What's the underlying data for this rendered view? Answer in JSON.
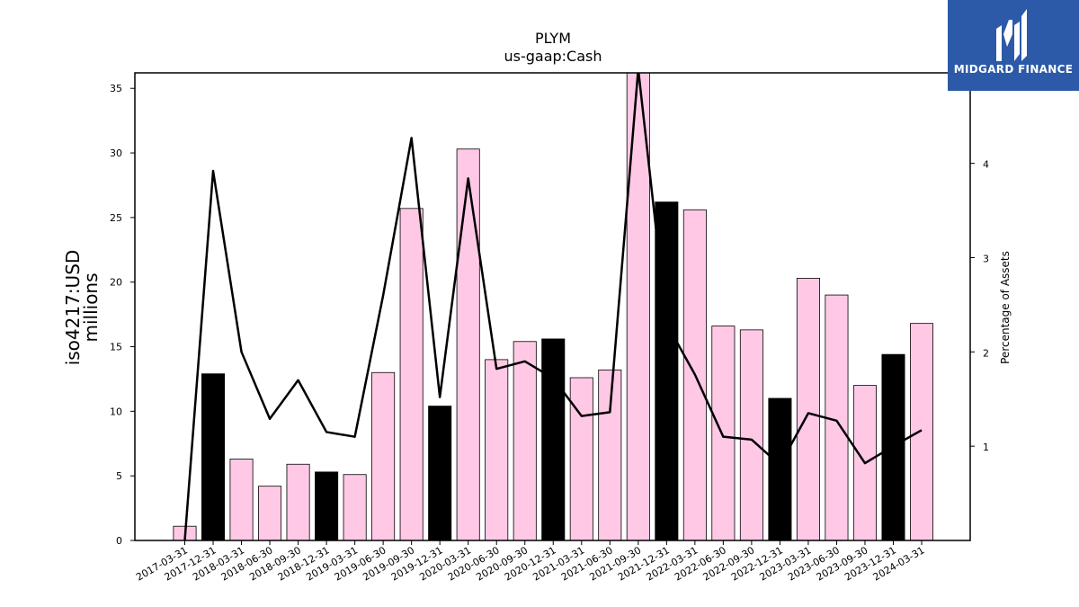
{
  "brand": {
    "name": "MIDGARD FINANCE",
    "bg_color": "#2c5aa8"
  },
  "chart_data": {
    "type": "bar",
    "title": "PLYM",
    "subtitle": "us-gaap:Cash",
    "ylabel_line1": "iso4217:USD",
    "ylabel_line2": "millions",
    "y2label": "Percentage of Assets",
    "ylim": [
      0,
      36.2
    ],
    "y2lim": [
      0,
      4.96
    ],
    "yticks": [
      0,
      5,
      10,
      15,
      20,
      25,
      30,
      35
    ],
    "y2ticks": [
      1,
      2,
      3,
      4
    ],
    "categories": [
      "2017-03-31",
      "2017-12-31",
      "2018-03-31",
      "2018-06-30",
      "2018-09-30",
      "2018-12-31",
      "2019-03-31",
      "2019-06-30",
      "2019-09-30",
      "2019-12-31",
      "2020-03-31",
      "2020-06-30",
      "2020-09-30",
      "2020-12-31",
      "2021-03-31",
      "2021-06-30",
      "2021-09-30",
      "2021-12-31",
      "2022-03-31",
      "2022-06-30",
      "2022-09-30",
      "2022-12-31",
      "2023-03-31",
      "2023-06-30",
      "2023-09-30",
      "2023-12-31",
      "2024-03-31"
    ],
    "values": [
      1.1,
      12.9,
      6.3,
      4.2,
      5.9,
      5.3,
      5.1,
      13.0,
      25.7,
      10.4,
      30.3,
      14.0,
      15.4,
      15.6,
      12.6,
      13.2,
      36.2,
      26.2,
      25.6,
      16.6,
      16.3,
      11.0,
      20.3,
      19.0,
      12.0,
      14.4,
      16.8
    ],
    "bar_highlight": [
      false,
      true,
      false,
      false,
      false,
      true,
      false,
      false,
      false,
      true,
      false,
      false,
      false,
      true,
      false,
      false,
      false,
      true,
      false,
      false,
      false,
      true,
      false,
      false,
      false,
      true,
      false
    ],
    "bar_color": "#ffc9e6",
    "highlight_color": "#000000",
    "series": [
      {
        "axis": "right",
        "type": "line",
        "values": [
          0.0,
          3.92,
          2.0,
          1.29,
          1.7,
          1.15,
          1.1,
          2.6,
          4.27,
          1.52,
          3.84,
          1.82,
          1.9,
          1.72,
          1.32,
          1.36,
          5.0,
          2.3,
          1.76,
          1.1,
          1.07,
          0.8,
          1.35,
          1.27,
          0.82,
          1.0,
          1.17
        ]
      }
    ],
    "grid": false
  }
}
